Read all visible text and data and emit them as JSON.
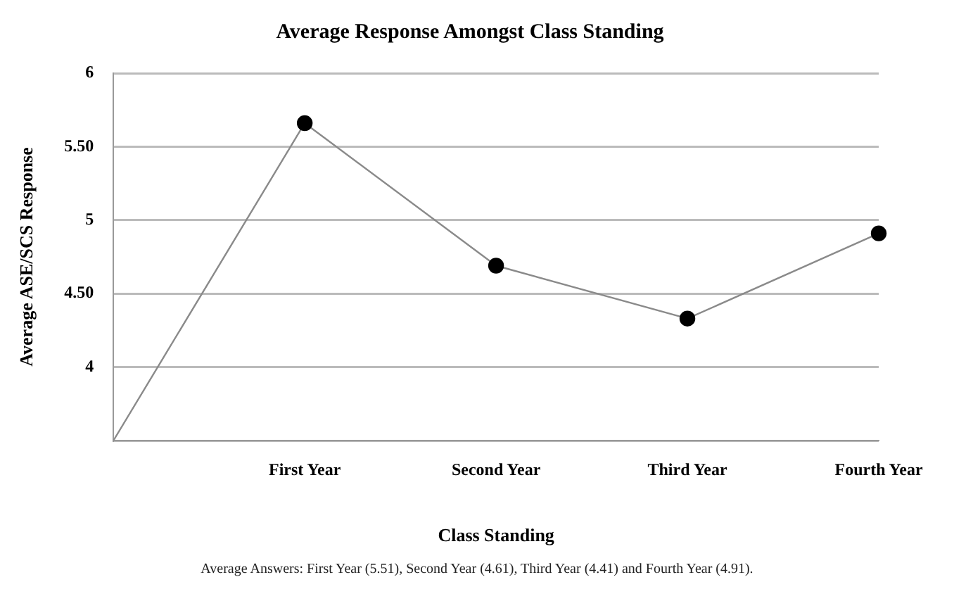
{
  "chart_data": {
    "type": "line",
    "title": "Average Response Amongst Class Standing",
    "xlabel": "Class Standing",
    "ylabel": "Average ASE/SCS Response",
    "categories": [
      null,
      "First Year",
      "Second Year",
      "Third Year",
      "Fourth Year"
    ],
    "series": [
      {
        "color": "#000000",
        "values": [
          3.5,
          5.66,
          4.69,
          4.33,
          4.91
        ]
      }
    ],
    "ylim": [
      3.5,
      6
    ],
    "yticks": [
      {
        "value": 3.5,
        "label": null
      },
      4,
      {
        "value": 4.5,
        "label": "4.50"
      },
      5,
      {
        "value": 5.5,
        "label": "5.50"
      },
      6
    ],
    "grid": "y",
    "marker": "circle",
    "line_style": "solid",
    "legend": false,
    "annotations": [
      "Average Answers: First Year (5.51), Second Year (4.61), Third Year (4.41) and Fourth Year (4.91)."
    ]
  }
}
